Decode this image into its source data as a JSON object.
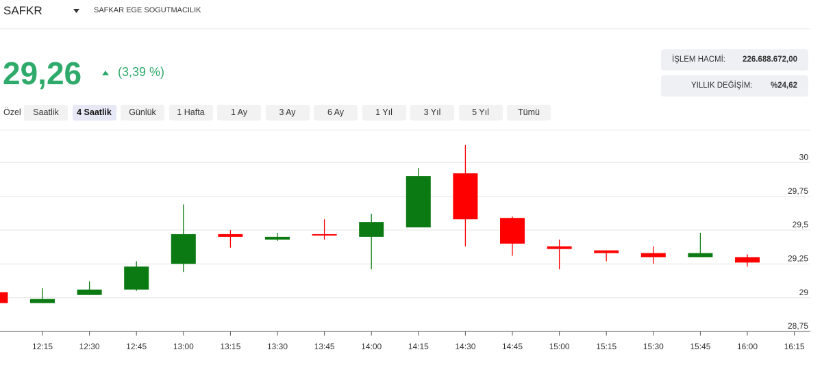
{
  "header": {
    "symbol": "SAFKR",
    "company": "SAFKAR EGE SOGUTMACILIK",
    "price": "29,26",
    "change": "(3,39 %)",
    "stats": [
      {
        "label": "İŞLEM HACMİ:",
        "value": "226.688.672,00"
      },
      {
        "label": "YILLIK DEĞİŞİM:",
        "value": "%24,62"
      }
    ]
  },
  "tabs": {
    "items": [
      "Özel",
      "Saatlik",
      "4 Saatlik",
      "Günlük",
      "1 Hafta",
      "1 Ay",
      "3 Ay",
      "6 Ay",
      "1 Yıl",
      "3 Yıl",
      "5 Yıl",
      "Tümü"
    ],
    "active": 2
  },
  "chart_data": {
    "type": "candlestick",
    "categories": [
      null,
      "12:15",
      "12:30",
      "12:45",
      "13:00",
      "13:15",
      "13:30",
      "13:45",
      "14:00",
      "14:15",
      "14:30",
      "14:45",
      "15:00",
      "15:15",
      "15:30",
      "15:45",
      "16:00",
      "16:15"
    ],
    "open": [
      29.04,
      28.96,
      29.02,
      29.06,
      29.25,
      29.47,
      29.43,
      29.47,
      29.45,
      29.52,
      29.92,
      29.59,
      29.38,
      29.35,
      29.33,
      29.3,
      29.3,
      null
    ],
    "high": [
      29.04,
      29.07,
      29.12,
      29.27,
      29.69,
      29.5,
      29.48,
      29.58,
      29.62,
      29.96,
      30.13,
      29.6,
      29.43,
      29.35,
      29.38,
      29.48,
      29.32,
      null
    ],
    "low": [
      28.96,
      28.96,
      29.02,
      29.05,
      29.19,
      29.37,
      29.42,
      29.43,
      29.21,
      29.52,
      29.38,
      29.31,
      29.21,
      29.27,
      29.25,
      29.3,
      29.23,
      null
    ],
    "close": [
      28.96,
      28.99,
      29.06,
      29.23,
      29.47,
      29.45,
      29.45,
      29.46,
      29.56,
      29.9,
      29.58,
      29.4,
      29.36,
      29.33,
      29.3,
      29.33,
      29.26,
      null
    ],
    "up_color": "#0b7a12",
    "down_color": "#ff0000",
    "ylim": [
      28.75,
      30.24
    ],
    "yticks": [
      {
        "value": 28.75,
        "label": "28,75"
      },
      29,
      {
        "value": 29.25,
        "label": "29,25"
      },
      {
        "value": 29.5,
        "label": "29,5"
      },
      {
        "value": 29.75,
        "label": "29,75"
      },
      30
    ],
    "grid": true
  }
}
